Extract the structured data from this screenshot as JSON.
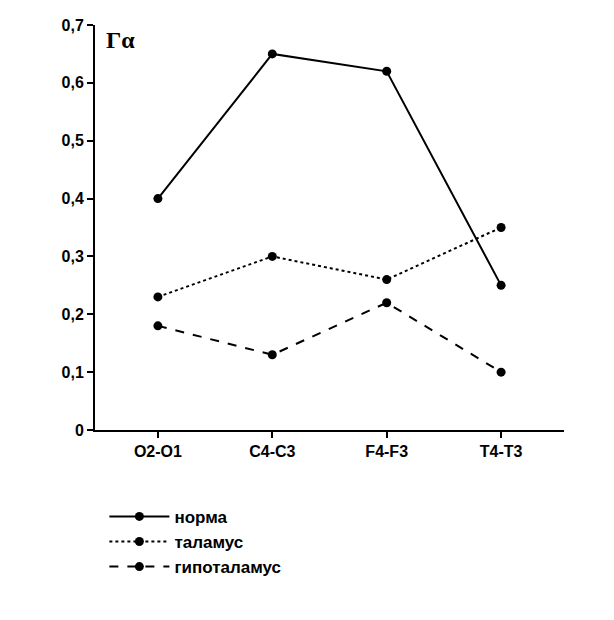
{
  "chart_data": {
    "type": "line",
    "y_label": "Γα",
    "categories": [
      "O2-O1",
      "C4-C3",
      "F4-F3",
      "T4-T3"
    ],
    "series": [
      {
        "name": "норма",
        "color": "#000000",
        "line_style": "solid",
        "marker": "circle",
        "values": [
          0.4,
          0.65,
          0.62,
          0.25
        ]
      },
      {
        "name": "таламус",
        "color": "#000000",
        "line_style": "dot",
        "marker": "circle",
        "values": [
          0.23,
          0.3,
          0.26,
          0.35
        ]
      },
      {
        "name": "гипоталамус",
        "color": "#000000",
        "line_style": "dash",
        "marker": "circle",
        "values": [
          0.18,
          0.13,
          0.22,
          0.1
        ]
      }
    ],
    "ylim": [
      0,
      0.7
    ],
    "yticks": [
      0,
      {
        "value": 0.1,
        "label": "0,1"
      },
      {
        "value": 0.2,
        "label": "0,2"
      },
      {
        "value": 0.3,
        "label": "0,3"
      },
      {
        "value": 0.4,
        "label": "0,4"
      },
      {
        "value": 0.5,
        "label": "0,5"
      },
      {
        "value": 0.6,
        "label": "0,6"
      },
      {
        "value": 0.7,
        "label": "0,7"
      }
    ],
    "grid": false,
    "legend": "bottom"
  }
}
